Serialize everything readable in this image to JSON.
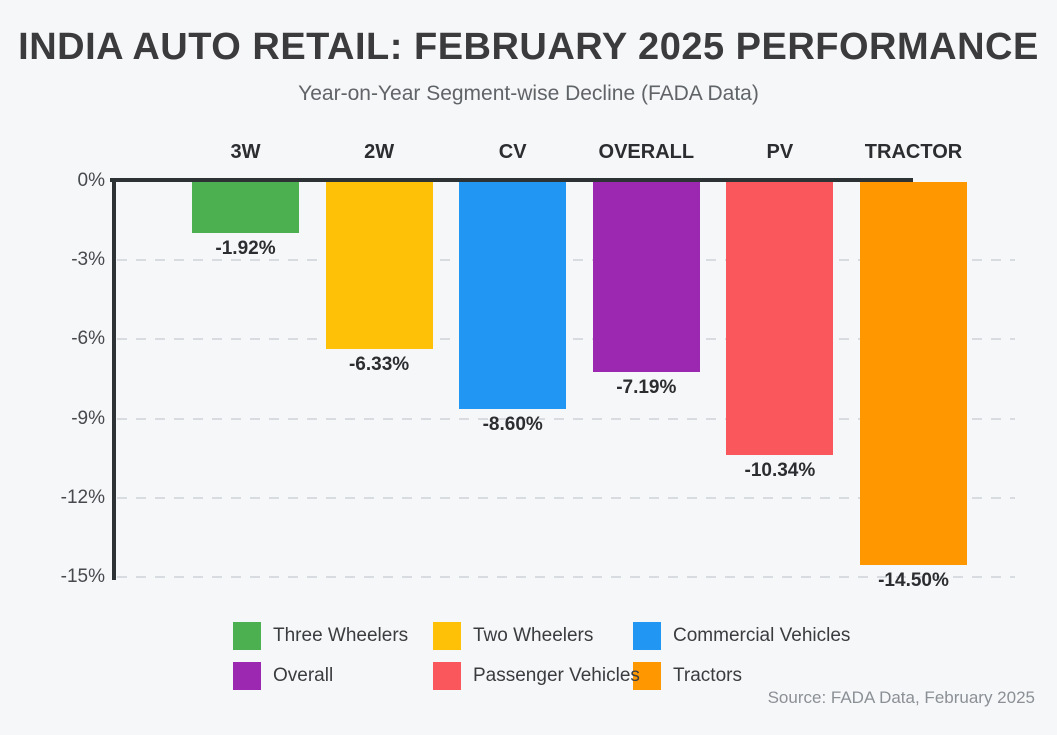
{
  "header": {
    "title": "INDIA AUTO RETAIL: FEBRUARY 2025 PERFORMANCE",
    "subtitle": "Year-on-Year Segment-wise Decline (FADA Data)"
  },
  "chart_data": {
    "type": "bar",
    "orientation": "vertical",
    "title": "INDIA AUTO RETAIL: FEBRUARY 2025 PERFORMANCE",
    "subtitle": "Year-on-Year Segment-wise Decline (FADA Data)",
    "unit": "percent YoY change",
    "categories": [
      "3W",
      "2W",
      "CV",
      "OVERALL",
      "PV",
      "TRACTOR"
    ],
    "values": [
      -1.92,
      -6.33,
      -8.6,
      -7.19,
      -10.34,
      -14.5
    ],
    "value_labels": [
      "-1.92%",
      "-6.33%",
      "-8.60%",
      "-7.19%",
      "-10.34%",
      "-14.50%"
    ],
    "bar_colors": [
      "#4caf50",
      "#ffc107",
      "#2196f3",
      "#9c27b0",
      "#f9575c",
      "#ff9800"
    ],
    "y_axis": {
      "tick_labels": [
        "0%",
        "-3%",
        "-6%",
        "-9%",
        "-12%",
        "-15%"
      ],
      "tick_values": [
        0,
        -3,
        -6,
        -9,
        -12,
        -15
      ],
      "min": -15,
      "max": 0
    },
    "grid": "dashed horizontal gridlines",
    "legend_position": "bottom"
  },
  "legend": {
    "items": [
      {
        "label": "Three Wheelers",
        "color": "#4caf50"
      },
      {
        "label": "Two Wheelers",
        "color": "#ffc107"
      },
      {
        "label": "Commercial Vehicles",
        "color": "#2196f3"
      },
      {
        "label": "Overall",
        "color": "#9c27b0"
      },
      {
        "label": "Passenger Vehicles",
        "color": "#f9575c"
      },
      {
        "label": "Tractors",
        "color": "#ff9800"
      }
    ]
  },
  "footer": {
    "source": "Source: FADA Data, February 2025"
  },
  "colors": {
    "background": "#f6f7f8",
    "axis": "#2d3235",
    "gridline": "#d8dbdf",
    "title_text": "#3b3b3d",
    "subtitle_text": "#606468",
    "label_text": "#2b2d30",
    "tick_text": "#46494d",
    "source_text": "#8b9096"
  }
}
